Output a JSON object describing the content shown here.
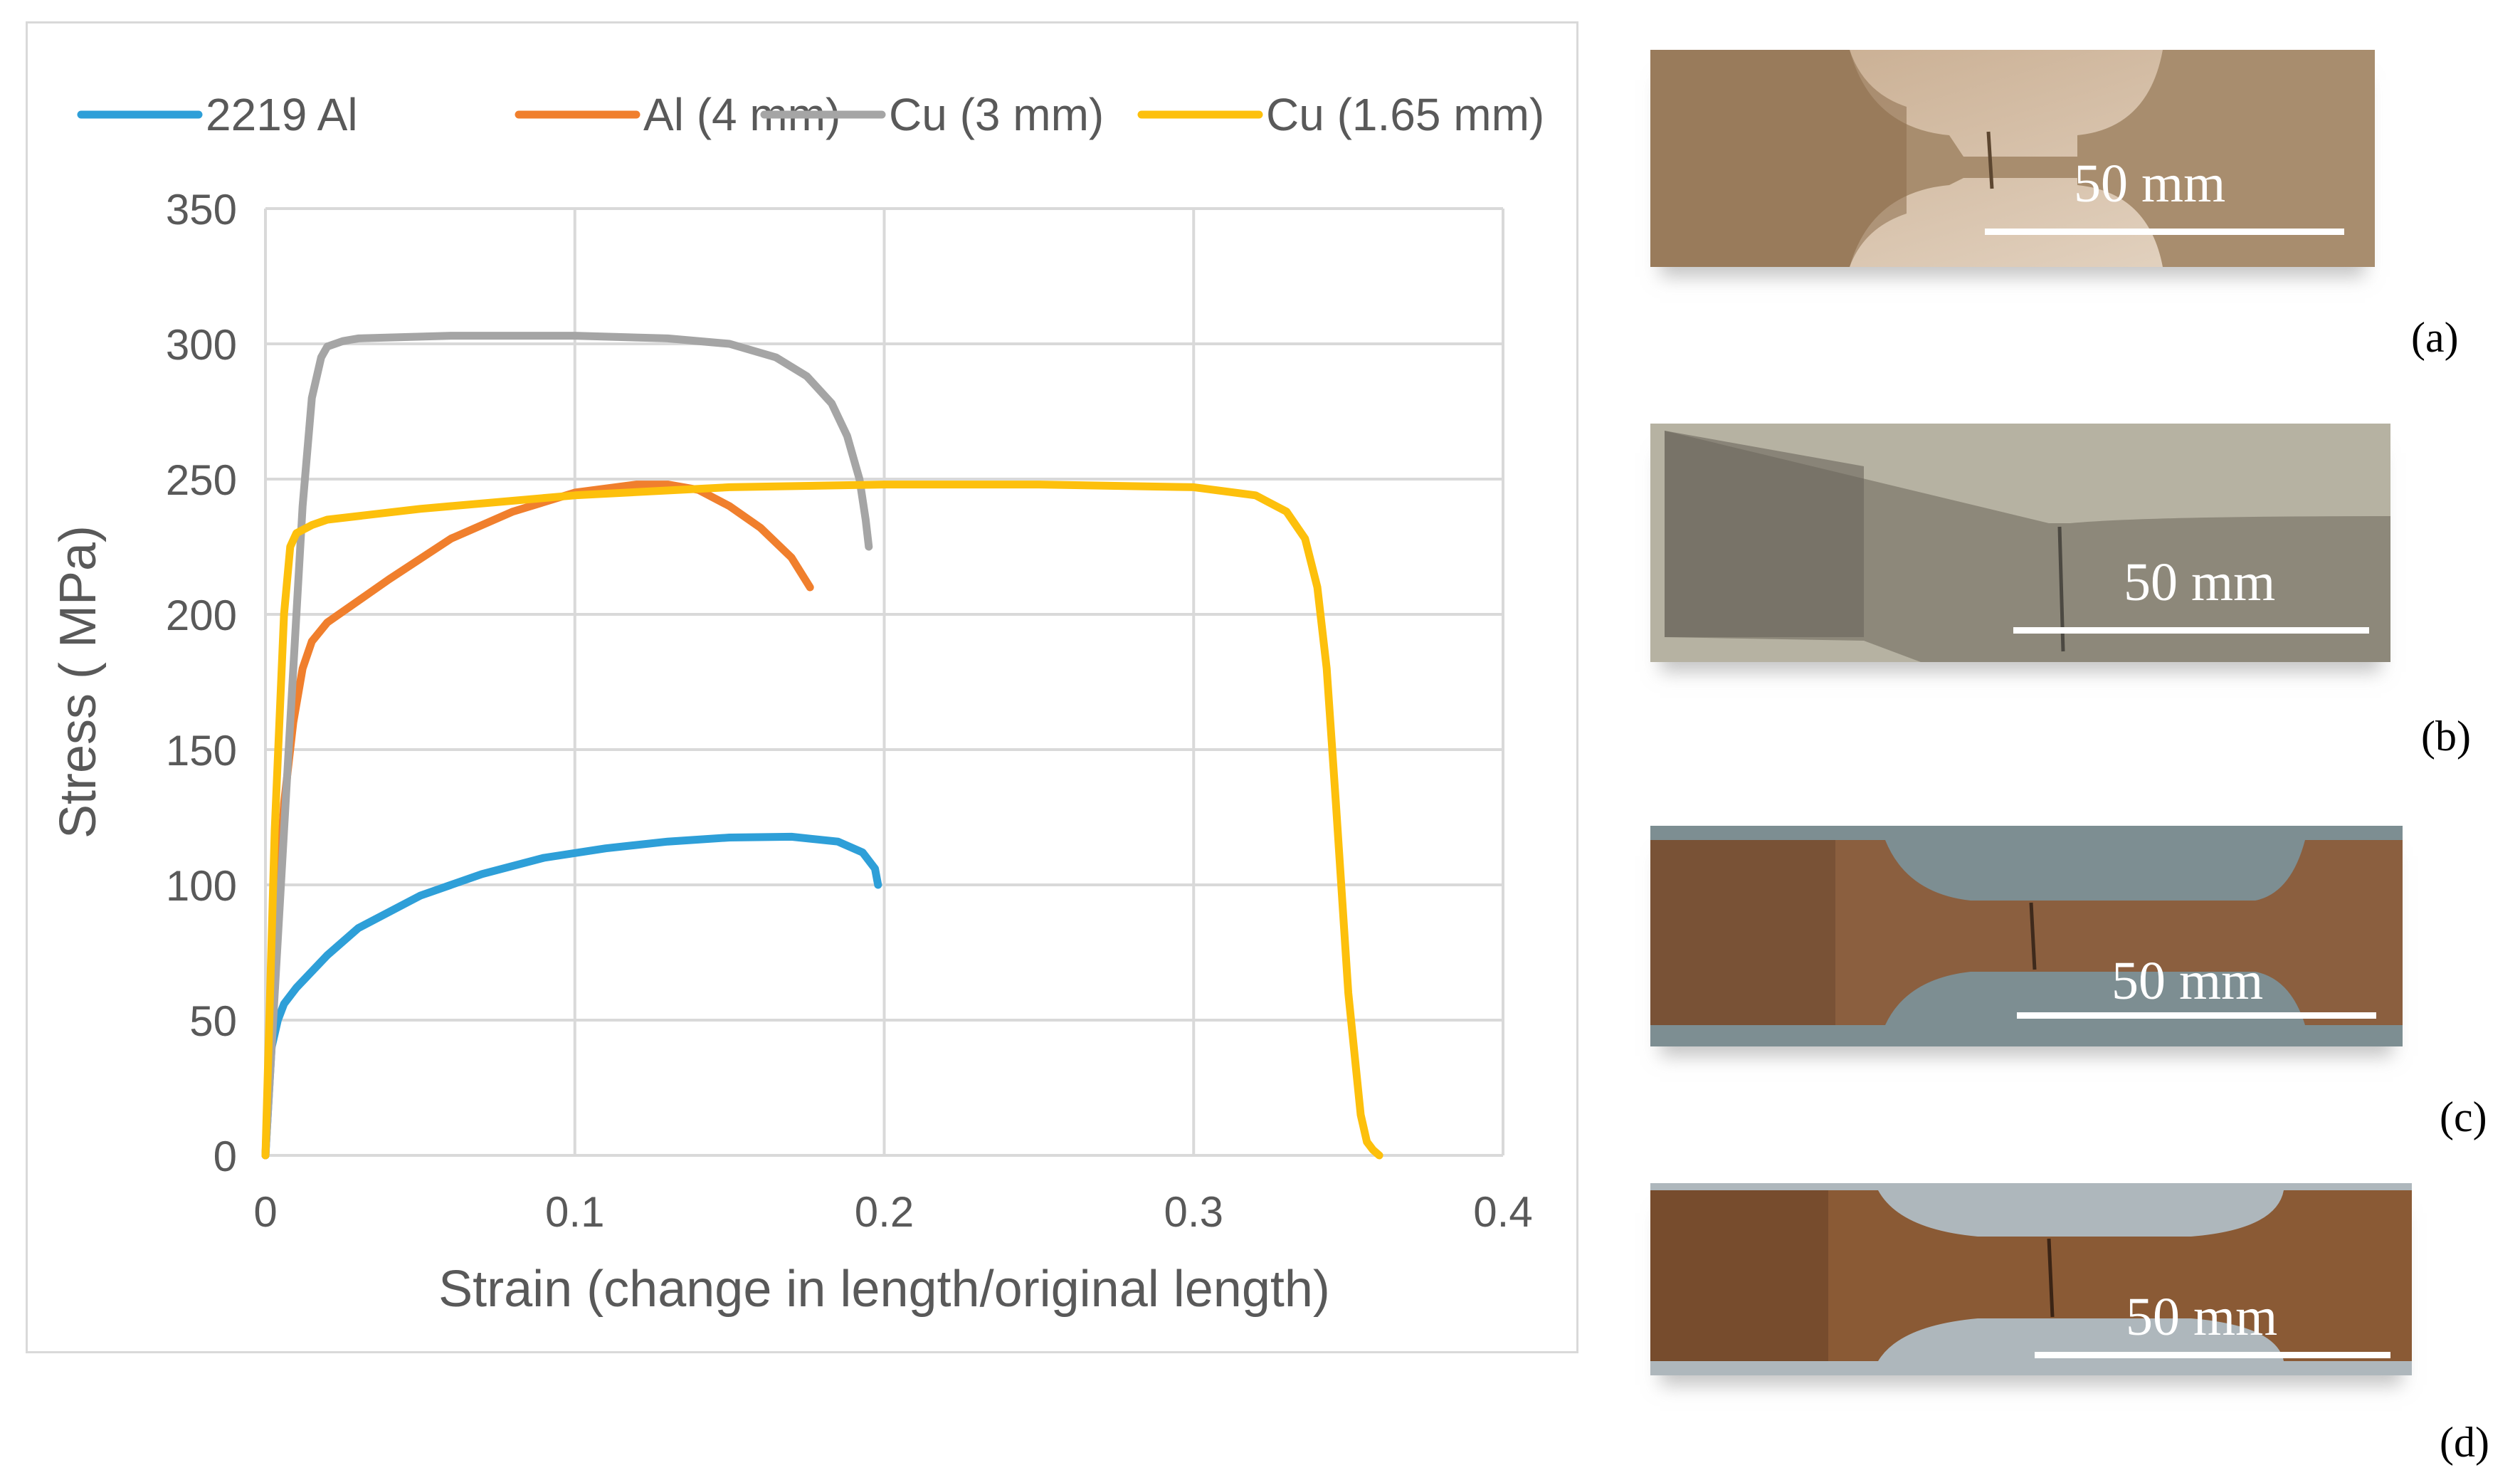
{
  "chart_data": {
    "type": "line",
    "title": "",
    "xlabel": "Strain (change in length/original length)",
    "ylabel": "Stress ( MPa)",
    "xlim": [
      0,
      0.4
    ],
    "ylim": [
      0,
      350
    ],
    "xticks": [
      0,
      0.1,
      0.2,
      0.3,
      0.4
    ],
    "xtick_labels": [
      "0",
      "0.1",
      "0.2",
      "0.3",
      "0.4"
    ],
    "yticks": [
      0,
      50,
      100,
      150,
      200,
      250,
      300,
      350
    ],
    "ytick_labels": [
      "0",
      "50",
      "100",
      "150",
      "200",
      "250",
      "300",
      "350"
    ],
    "grid": true,
    "legend_position": "top",
    "series": [
      {
        "name": "2219 Al",
        "color": "#2e9fd8",
        "x": [
          0,
          0.002,
          0.004,
          0.006,
          0.01,
          0.02,
          0.03,
          0.05,
          0.07,
          0.09,
          0.11,
          0.13,
          0.15,
          0.17,
          0.185,
          0.193,
          0.197,
          0.198
        ],
        "y": [
          0,
          40,
          50,
          56,
          62,
          74,
          84,
          96,
          104,
          110,
          113.5,
          116,
          117.5,
          117.8,
          116,
          112,
          106,
          100
        ]
      },
      {
        "name": "Al (4 mm)",
        "color": "#f07f2d",
        "x": [
          0,
          0.003,
          0.006,
          0.009,
          0.012,
          0.015,
          0.02,
          0.03,
          0.04,
          0.06,
          0.08,
          0.1,
          0.12,
          0.13,
          0.14,
          0.15,
          0.16,
          0.17,
          0.176
        ],
        "y": [
          0,
          80,
          130,
          160,
          180,
          190,
          197,
          205,
          213,
          228,
          238,
          245,
          248,
          248,
          246,
          240,
          232,
          221,
          210
        ]
      },
      {
        "name": "Cu (3 mm)",
        "color": "#a5a5a5",
        "x": [
          0,
          0.004,
          0.008,
          0.012,
          0.015,
          0.018,
          0.02,
          0.025,
          0.03,
          0.06,
          0.1,
          0.13,
          0.15,
          0.165,
          0.175,
          0.183,
          0.188,
          0.192,
          0.194,
          0.195
        ],
        "y": [
          0,
          80,
          160,
          240,
          280,
          295,
          299,
          301,
          302,
          303,
          303,
          302,
          300,
          295,
          288,
          278,
          266,
          250,
          235,
          225
        ]
      },
      {
        "name": "Cu (1.65 mm)",
        "color": "#fdc00c",
        "x": [
          0,
          0.003,
          0.006,
          0.008,
          0.01,
          0.015,
          0.02,
          0.05,
          0.1,
          0.15,
          0.2,
          0.25,
          0.3,
          0.32,
          0.33,
          0.336,
          0.34,
          0.343,
          0.346,
          0.35,
          0.354,
          0.356,
          0.358,
          0.36
        ],
        "y": [
          0,
          120,
          200,
          225,
          230,
          233,
          235,
          239,
          244,
          247,
          248,
          248,
          247,
          244,
          238,
          228,
          210,
          180,
          130,
          60,
          15,
          5,
          2,
          0
        ]
      }
    ]
  },
  "photos": [
    {
      "scale_label": "50 mm",
      "panel_label": "(a)",
      "colors": [
        "#c7ab8e",
        "#a88d6e",
        "#8c6e4d"
      ]
    },
    {
      "scale_label": "50 mm",
      "panel_label": "(b)",
      "colors": [
        "#b6b2a2",
        "#8d887a",
        "#6a665b"
      ]
    },
    {
      "scale_label": "50 mm",
      "panel_label": "(c)",
      "colors": [
        "#7d8e92",
        "#8b5f3f",
        "#6e4a31"
      ]
    },
    {
      "scale_label": "50 mm",
      "panel_label": "(d)",
      "colors": [
        "#aeb7bc",
        "#8a5a35",
        "#6b4328"
      ]
    }
  ]
}
